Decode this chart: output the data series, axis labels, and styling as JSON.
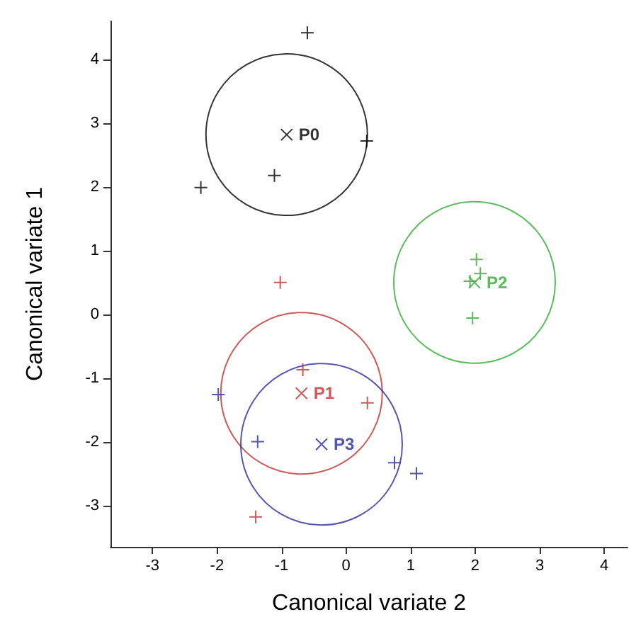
{
  "chart_data": {
    "type": "scatter",
    "xlabel": "Canonical variate 2",
    "ylabel": "Canonical variate 1",
    "xlim": [
      -3.65,
      4.36
    ],
    "ylim": [
      -3.65,
      4.6
    ],
    "xticks": [
      -3,
      -2,
      -1,
      0,
      1,
      2,
      3,
      4
    ],
    "yticks": [
      -3,
      -2,
      -1,
      0,
      1,
      2,
      3,
      4
    ],
    "grid": false,
    "legend": false,
    "marker": "cross",
    "series": [
      {
        "type": "scatter",
        "color": "#000000",
        "x": [
          -0.6,
          0.32,
          -1.11,
          -2.25
        ],
        "values": [
          4.42,
          2.72,
          2.18,
          1.99
        ]
      },
      {
        "type": "scatter",
        "color": "#c03030",
        "x": [
          -1.02,
          -0.67,
          0.33,
          -1.4
        ],
        "values": [
          0.5,
          -0.87,
          -1.39,
          -3.18
        ]
      },
      {
        "type": "scatter",
        "color": "#33aa33",
        "x": [
          2.02,
          2.08,
          1.92,
          1.96
        ],
        "values": [
          0.86,
          0.64,
          0.52,
          -0.06
        ]
      },
      {
        "type": "scatter",
        "color": "#2a2a9a",
        "x": [
          -1.98,
          -1.37,
          0.75,
          1.09
        ],
        "values": [
          -1.26,
          -2.0,
          -2.33,
          -2.5
        ]
      },
      {
        "type": "bubble",
        "marker": "circle",
        "name": "P0",
        "color": "#000000",
        "x": [
          -0.92
        ],
        "values": [
          2.82
        ],
        "sizes": [
          1
        ]
      },
      {
        "type": "bubble",
        "marker": "circle",
        "name": "P1",
        "color": "#c03030",
        "x": [
          -0.69
        ],
        "values": [
          -1.24
        ],
        "sizes": [
          1
        ]
      },
      {
        "type": "bubble",
        "marker": "circle",
        "name": "P2",
        "color": "#33aa33",
        "x": [
          1.99
        ],
        "values": [
          0.5
        ],
        "sizes": [
          1
        ]
      },
      {
        "type": "bubble",
        "marker": "circle",
        "name": "P3",
        "color": "#2a2a9a",
        "x": [
          -0.38
        ],
        "values": [
          -2.04
        ],
        "sizes": [
          1
        ]
      }
    ]
  }
}
